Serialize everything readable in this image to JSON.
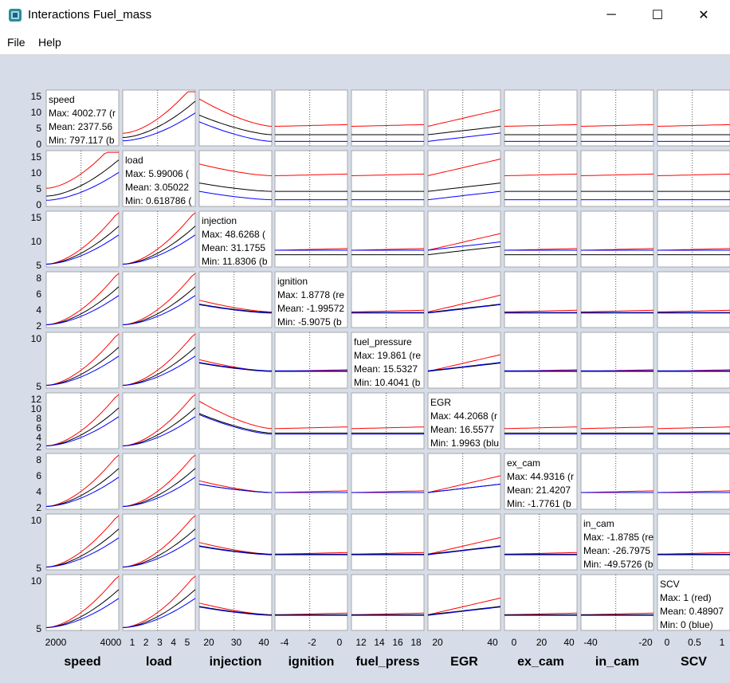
{
  "window": {
    "title": "Interactions Fuel_mass",
    "minimize_glyph": "─",
    "maximize_glyph": "☐",
    "close_glyph": "✕",
    "app_icon": "matlab-figure-icon"
  },
  "menu": {
    "items": [
      "File",
      "Help"
    ]
  },
  "colors": {
    "background": "#d6dde8",
    "axes_background": "#ffffff",
    "max_line": "#ff0000",
    "mean_line": "#000000",
    "min_line": "#0000ff"
  },
  "chart_data": {
    "type": "line",
    "title": "Interactions Fuel_mass",
    "variables": [
      {
        "name": "speed",
        "max": "Max: 4002.77 (r",
        "mean": "Mean: 2377.56",
        "min": "Min: 797.117 (b",
        "xticks": [
          "2000",
          "4000"
        ],
        "yticks": [
          "15",
          "10",
          "5",
          "0"
        ]
      },
      {
        "name": "load",
        "max": "Max: 5.99006 (",
        "mean": "Mean: 3.05022",
        "min": "Min: 0.618786 (",
        "xticks": [
          "1",
          "2",
          "3",
          "4",
          "5"
        ],
        "yticks": [
          "15",
          "10",
          "5",
          "0"
        ]
      },
      {
        "name": "injection",
        "max": "Max: 48.6268 (",
        "mean": "Mean: 31.1755",
        "min": "Min: 11.8306 (b",
        "xticks": [
          "20",
          "30",
          "40"
        ],
        "yticks": [
          "15",
          "10",
          "5"
        ]
      },
      {
        "name": "ignition",
        "max": "Max: 1.8778 (re",
        "mean": "Mean: -1.99572",
        "min": "Min: -5.9075 (b",
        "xticks": [
          "-4",
          "-2",
          "0"
        ],
        "yticks": [
          "8",
          "6",
          "4",
          "2"
        ]
      },
      {
        "name": "fuel_pressure",
        "max": "Max: 19.861 (re",
        "mean": "Mean: 15.5327",
        "min": "Min: 10.4041 (b",
        "xticks": [
          "12",
          "14",
          "16",
          "18"
        ],
        "yticks": [
          "10",
          "5"
        ]
      },
      {
        "name": "EGR",
        "max": "Max: 44.2068 (r",
        "mean": "Mean: 16.5577",
        "min": "Min: 1.9963 (blu",
        "xticks": [
          "20",
          "40"
        ],
        "yticks": [
          "12",
          "10",
          "8",
          "6",
          "4",
          "2"
        ]
      },
      {
        "name": "ex_cam",
        "max": "Max: 44.9316 (r",
        "mean": "Mean: 21.4207",
        "min": "Min: -1.7761 (b",
        "xticks": [
          "0",
          "20",
          "40"
        ],
        "yticks": [
          "8",
          "6",
          "4",
          "2"
        ]
      },
      {
        "name": "in_cam",
        "max": "Max: -1.8785 (re",
        "mean": "Mean: -26.7975",
        "min": "Min: -49.5726 (b",
        "xticks": [
          "-40",
          "-20"
        ],
        "yticks": [
          "10",
          "5"
        ]
      },
      {
        "name": "SCV",
        "max": "Max: 1 (red)",
        "mean": "Mean: 0.48907",
        "min": "Min: 0 (blue)",
        "xticks": [
          "0",
          "0.5",
          "1"
        ],
        "yticks": [
          "10",
          "5"
        ]
      }
    ],
    "xlabels": [
      "speed",
      "load",
      "injection",
      "ignition",
      "fuel_press",
      "EGR",
      "ex_cam",
      "in_cam",
      "SCV"
    ],
    "series": [
      {
        "name": "red",
        "color": "#ff0000"
      },
      {
        "name": "mean",
        "color": "#000000"
      },
      {
        "name": "blue",
        "color": "#0000ff"
      }
    ],
    "grid": "dotted vertical line at mean"
  }
}
